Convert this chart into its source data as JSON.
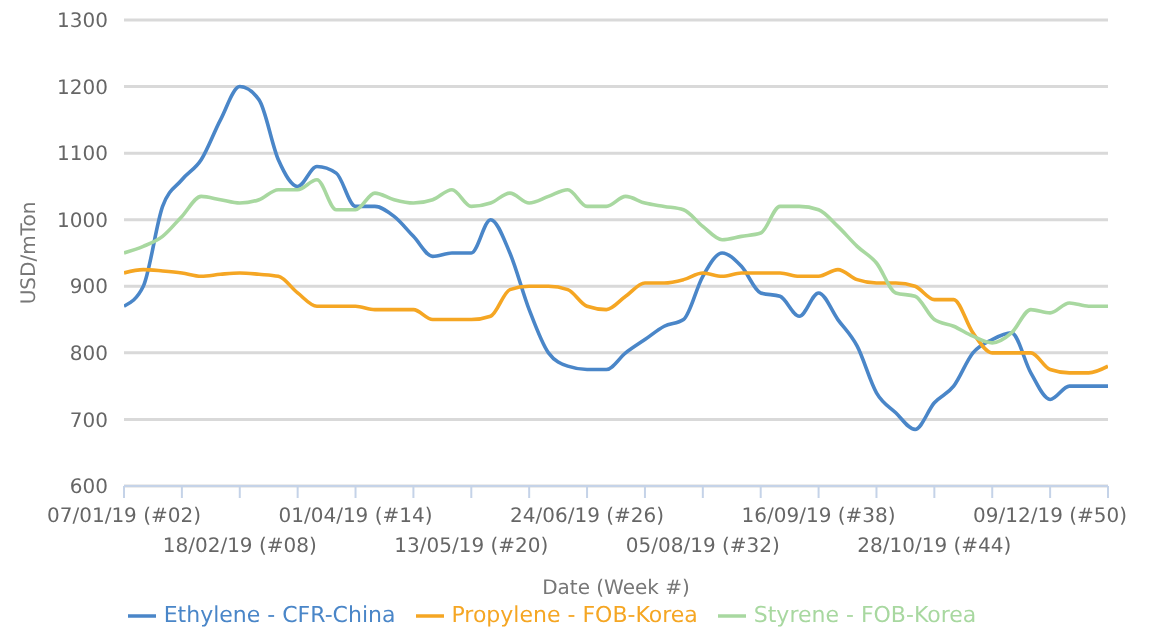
{
  "chart_data": {
    "type": "line",
    "xlabel": "Date (Week #)",
    "ylabel": "USD/mTon",
    "categories": [
      "07/01/19 (#02)",
      null,
      null,
      null,
      null,
      null,
      "18/02/19 (#08)",
      null,
      null,
      null,
      null,
      null,
      "01/04/19 (#14)",
      null,
      null,
      null,
      null,
      null,
      "13/05/19 (#20)",
      null,
      null,
      null,
      null,
      null,
      "24/06/19 (#26)",
      null,
      null,
      null,
      null,
      null,
      "05/08/19 (#32)",
      null,
      null,
      null,
      null,
      null,
      "16/09/19 (#38)",
      null,
      null,
      null,
      null,
      null,
      "28/10/19 (#44)",
      null,
      null,
      null,
      null,
      null,
      "09/12/19 (#50)",
      null,
      null,
      null
    ],
    "series": [
      {
        "name": "Ethylene - CFR-China",
        "color": "#4a86c8",
        "values": [
          870,
          900,
          1020,
          1060,
          1090,
          1150,
          1200,
          1180,
          1090,
          1050,
          1080,
          1070,
          1020,
          1020,
          1005,
          975,
          945,
          950,
          950,
          1000,
          950,
          865,
          800,
          780,
          775,
          775,
          800,
          820,
          840,
          850,
          915,
          950,
          930,
          890,
          885,
          855,
          890,
          850,
          810,
          740,
          710,
          685,
          725,
          750,
          800,
          820,
          830,
          770,
          730,
          750,
          750,
          750
        ]
      },
      {
        "name": "Propylene - FOB-Korea",
        "color": "#f5a623",
        "values": [
          920,
          925,
          923,
          920,
          915,
          918,
          920,
          918,
          915,
          890,
          870,
          870,
          870,
          865,
          865,
          865,
          850,
          850,
          850,
          855,
          895,
          900,
          900,
          895,
          870,
          865,
          885,
          905,
          905,
          910,
          920,
          915,
          920,
          920,
          920,
          915,
          915,
          925,
          910,
          905,
          905,
          900,
          880,
          880,
          830,
          800,
          800,
          800,
          775,
          770,
          770,
          780
        ]
      },
      {
        "name": "Styrene - FOB-Korea",
        "color": "#a8d8a0",
        "values": [
          950,
          960,
          975,
          1005,
          1035,
          1030,
          1025,
          1030,
          1045,
          1045,
          1060,
          1015,
          1015,
          1040,
          1030,
          1025,
          1030,
          1045,
          1020,
          1025,
          1040,
          1025,
          1035,
          1045,
          1020,
          1020,
          1035,
          1025,
          1020,
          1015,
          990,
          970,
          975,
          980,
          1020,
          1020,
          1015,
          990,
          960,
          935,
          890,
          885,
          850,
          840,
          825,
          815,
          830,
          865,
          860,
          875,
          870,
          870
        ]
      }
    ],
    "ylim": [
      600,
      1300
    ],
    "yticks": [
      600,
      700,
      800,
      900,
      1000,
      1100,
      1200,
      1300
    ],
    "grid": "y",
    "legend": "bottom",
    "marker": "none",
    "line_style": "solid"
  }
}
